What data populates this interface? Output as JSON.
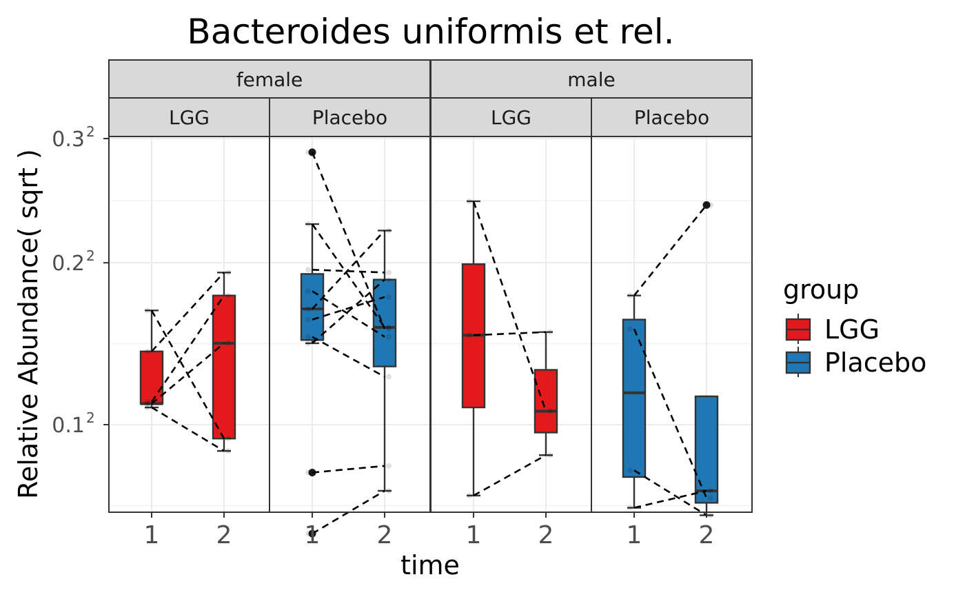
{
  "chart_data": {
    "type": "boxplot",
    "title": "Bacteroides uniformis et rel.",
    "xlabel": "time",
    "ylabel": "Relative Abundance( sqrt )",
    "y_scale": "sqrt",
    "ylim": [
      0.05,
      0.3
    ],
    "y_ticks": [
      {
        "value": 0.1,
        "base": "0.1",
        "exp": "2"
      },
      {
        "value": 0.2,
        "base": "0.2",
        "exp": "2"
      },
      {
        "value": 0.3,
        "base": "0.3",
        "exp": "2"
      }
    ],
    "x_categories": [
      "1",
      "2"
    ],
    "facet_rows_top": [
      "female",
      "male"
    ],
    "legend": {
      "title": "group",
      "items": [
        {
          "label": "LGG",
          "color": "#e31a1c"
        },
        {
          "label": "Placebo",
          "color": "#1f78b4"
        }
      ]
    },
    "panels": [
      {
        "sex": "female",
        "group": "LGG",
        "color": "#e31a1c",
        "boxes": [
          {
            "time": "1",
            "min": 0.109,
            "q1": 0.111,
            "median": 0.111,
            "q3": 0.141,
            "max": 0.167,
            "outliers": []
          },
          {
            "time": "2",
            "min": 0.087,
            "q1": 0.093,
            "median": 0.146,
            "q3": 0.177,
            "max": 0.193,
            "outliers": []
          }
        ],
        "pairs": [
          [
            0.167,
            0.093
          ],
          [
            0.141,
            0.193
          ],
          [
            0.111,
            0.146
          ],
          [
            0.109,
            0.087
          ],
          [
            0.112,
            0.177
          ]
        ]
      },
      {
        "sex": "female",
        "group": "Placebo",
        "color": "#1f78b4",
        "boxes": [
          {
            "time": "1",
            "min": 0.146,
            "q1": 0.148,
            "median": 0.168,
            "q3": 0.192,
            "max": 0.229,
            "outliers": [
              0.288,
              0.077,
              0.052
            ]
          },
          {
            "time": "2",
            "min": 0.069,
            "q1": 0.132,
            "median": 0.156,
            "q3": 0.188,
            "max": 0.224,
            "outliers": []
          }
        ],
        "pairs": [
          [
            0.288,
            0.155
          ],
          [
            0.229,
            0.156
          ],
          [
            0.195,
            0.193
          ],
          [
            0.18,
            0.15
          ],
          [
            0.168,
            0.224
          ],
          [
            0.161,
            0.176
          ],
          [
            0.15,
            0.126
          ],
          [
            0.146,
            0.188
          ],
          [
            0.077,
            0.08
          ],
          [
            0.052,
            0.069
          ]
        ]
      },
      {
        "sex": "male",
        "group": "LGG",
        "color": "#e31a1c",
        "boxes": [
          {
            "time": "1",
            "min": 0.067,
            "q1": 0.109,
            "median": 0.151,
            "q3": 0.199,
            "max": 0.247,
            "outliers": []
          },
          {
            "time": "2",
            "min": 0.085,
            "q1": 0.096,
            "median": 0.107,
            "q3": 0.13,
            "max": 0.153,
            "outliers": []
          }
        ],
        "pairs": [
          [
            0.247,
            0.107
          ],
          [
            0.151,
            0.153
          ],
          [
            0.067,
            0.085
          ]
        ]
      },
      {
        "sex": "male",
        "group": "Placebo",
        "color": "#1f78b4",
        "boxes": [
          {
            "time": "1",
            "min": 0.062,
            "q1": 0.075,
            "median": 0.117,
            "q3": 0.161,
            "max": 0.177,
            "outliers": []
          },
          {
            "time": "2",
            "min": 0.059,
            "q1": 0.064,
            "median": 0.069,
            "q3": 0.115,
            "max": 0.115,
            "outliers": [
              0.244
            ]
          }
        ],
        "pairs": [
          [
            0.177,
            0.244
          ],
          [
            0.155,
            0.066
          ],
          [
            0.078,
            0.059
          ],
          [
            0.062,
            0.069
          ]
        ]
      }
    ]
  }
}
